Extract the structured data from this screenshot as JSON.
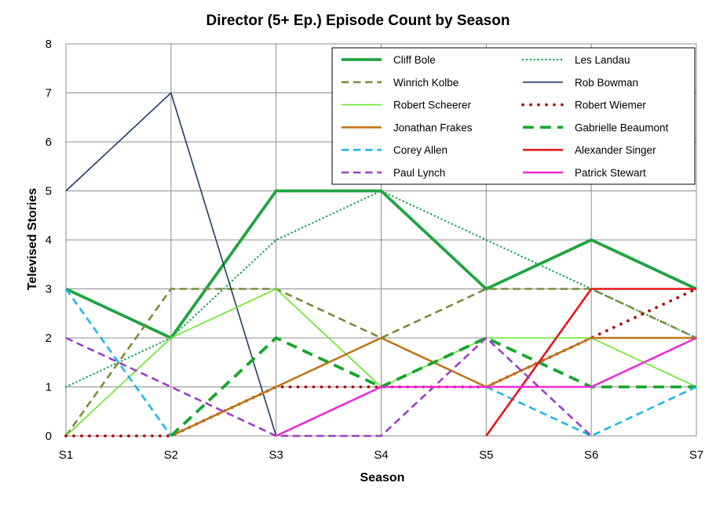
{
  "chart_data": {
    "type": "line",
    "title": "Director (5+ Ep.) Episode Count by Season",
    "xlabel": "Season",
    "ylabel": "Televised Stories",
    "categories": [
      "S1",
      "S2",
      "S3",
      "S4",
      "S5",
      "S6",
      "S7"
    ],
    "ylim": [
      0,
      8
    ],
    "yticks": [
      0,
      1,
      2,
      3,
      4,
      5,
      6,
      7,
      8
    ],
    "grid": true,
    "legend_position": "top-right",
    "series": [
      {
        "name": "Cliff Bole",
        "values": [
          3,
          2,
          5,
          5,
          3,
          4,
          3
        ],
        "color": "#21a441",
        "style": "solid",
        "weight": "heavy"
      },
      {
        "name": "Les Landau",
        "values": [
          1,
          2,
          4,
          5,
          4,
          3,
          2
        ],
        "color": "#1fa55a",
        "style": "dotted",
        "weight": "normal"
      },
      {
        "name": "Winrich Kolbe",
        "values": [
          0,
          3,
          3,
          2,
          3,
          3,
          2
        ],
        "color": "#7a8c3c",
        "style": "dashed",
        "weight": "medium"
      },
      {
        "name": "Rob Bowman",
        "values": [
          5,
          7,
          0,
          null,
          null,
          null,
          null
        ],
        "color": "#1f3b63",
        "style": "solid",
        "weight": "thin"
      },
      {
        "name": "Robert Scheerer",
        "values": [
          0,
          2,
          3,
          1,
          2,
          2,
          1
        ],
        "color": "#66e82a",
        "style": "solid",
        "weight": "thin"
      },
      {
        "name": "Robert Wiemer",
        "values": [
          0,
          0,
          1,
          1,
          1,
          2,
          3
        ],
        "color": "#b11010",
        "style": "round-dotted",
        "weight": "heavy"
      },
      {
        "name": "Jonathan Frakes",
        "values": [
          null,
          0,
          1,
          2,
          1,
          2,
          2
        ],
        "color": "#c07418",
        "style": "solid",
        "weight": "medium"
      },
      {
        "name": "Gabrielle Beaumont",
        "values": [
          null,
          0,
          2,
          1,
          2,
          1,
          1
        ],
        "color": "#17a62c",
        "style": "dashed",
        "weight": "heavy"
      },
      {
        "name": "Corey Allen",
        "values": [
          3,
          0,
          null,
          null,
          1,
          0,
          1
        ],
        "color": "#20b6e8",
        "style": "dashed",
        "weight": "medium"
      },
      {
        "name": "Alexander Singer",
        "values": [
          null,
          null,
          null,
          null,
          0,
          3,
          3
        ],
        "color": "#e8141c",
        "style": "solid",
        "weight": "medium"
      },
      {
        "name": "Paul Lynch",
        "values": [
          2,
          1,
          0,
          0,
          2,
          0,
          null
        ],
        "color": "#9b3fc4",
        "style": "dashed",
        "weight": "medium"
      },
      {
        "name": "Patrick Stewart",
        "values": [
          null,
          null,
          0,
          1,
          1,
          1,
          2
        ],
        "color": "#f02ad4",
        "style": "solid",
        "weight": "medium"
      }
    ]
  }
}
